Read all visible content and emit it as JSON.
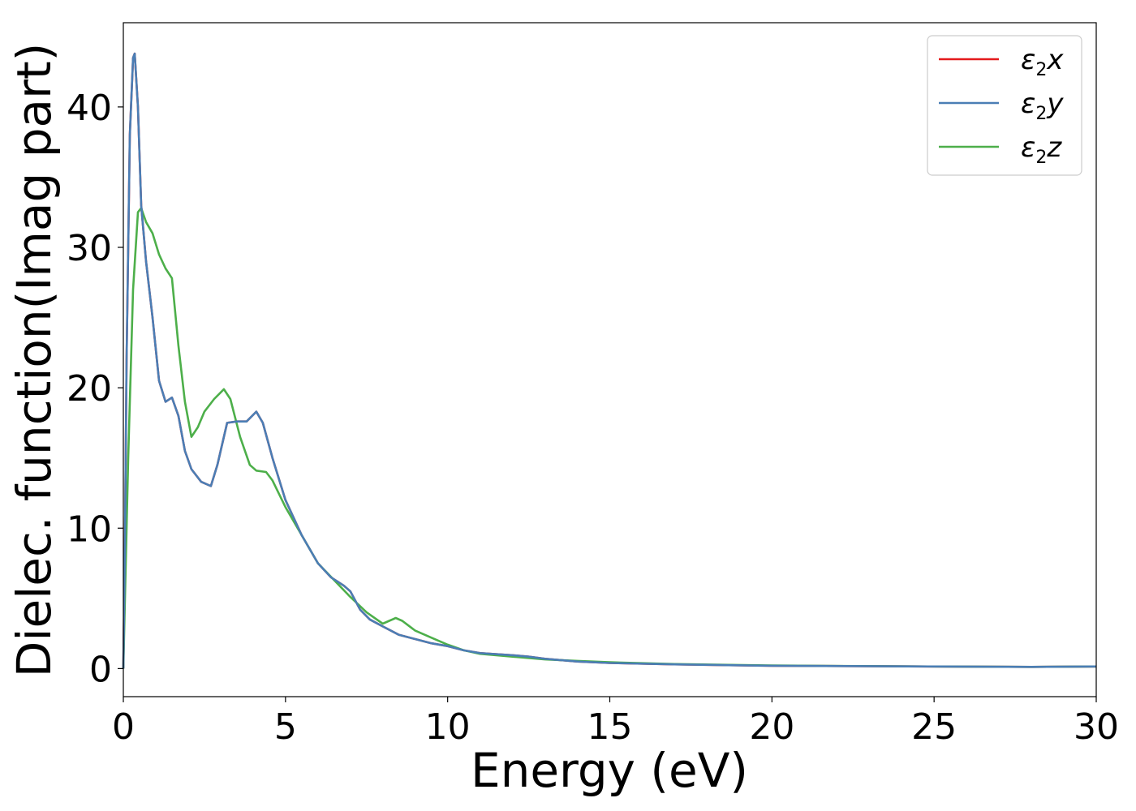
{
  "chart_data": {
    "type": "line",
    "xlabel": "Energy (eV)",
    "ylabel": "Dielec. function(Imag part)",
    "xlim": [
      0,
      30
    ],
    "ylim": [
      -2,
      46
    ],
    "x_ticks": [
      0,
      5,
      10,
      15,
      20,
      25,
      30
    ],
    "y_ticks": [
      0,
      10,
      20,
      30,
      40
    ],
    "grid": false,
    "legend_position": "top-right",
    "series": [
      {
        "name": "ε₂x",
        "legend_base": "ε",
        "legend_sub": "2",
        "legend_var": "x",
        "color": "#e41a1c",
        "points": [
          [
            0,
            0
          ],
          [
            0.05,
            9
          ],
          [
            0.1,
            22
          ],
          [
            0.2,
            38
          ],
          [
            0.3,
            43.5
          ],
          [
            0.35,
            43.8
          ],
          [
            0.45,
            40
          ],
          [
            0.55,
            33
          ],
          [
            0.7,
            29
          ],
          [
            0.9,
            25
          ],
          [
            1.1,
            20.5
          ],
          [
            1.3,
            19
          ],
          [
            1.5,
            19.3
          ],
          [
            1.7,
            18
          ],
          [
            1.9,
            15.5
          ],
          [
            2.1,
            14.2
          ],
          [
            2.4,
            13.3
          ],
          [
            2.7,
            13
          ],
          [
            2.9,
            14.5
          ],
          [
            3.2,
            17.5
          ],
          [
            3.5,
            17.6
          ],
          [
            3.8,
            17.6
          ],
          [
            4.1,
            18.3
          ],
          [
            4.3,
            17.5
          ],
          [
            4.6,
            15
          ],
          [
            5.0,
            12
          ],
          [
            5.5,
            9.5
          ],
          [
            6.0,
            7.5
          ],
          [
            6.4,
            6.5
          ],
          [
            6.8,
            5.9
          ],
          [
            7.0,
            5.5
          ],
          [
            7.3,
            4.2
          ],
          [
            7.6,
            3.5
          ],
          [
            8.0,
            3
          ],
          [
            8.5,
            2.4
          ],
          [
            9.0,
            2.1
          ],
          [
            9.5,
            1.8
          ],
          [
            10.0,
            1.6
          ],
          [
            10.5,
            1.3
          ],
          [
            11.0,
            1.1
          ],
          [
            12.0,
            0.95
          ],
          [
            12.5,
            0.85
          ],
          [
            13.0,
            0.7
          ],
          [
            14.0,
            0.5
          ],
          [
            15.0,
            0.4
          ],
          [
            17.0,
            0.3
          ],
          [
            20.0,
            0.2
          ],
          [
            25.0,
            0.15
          ],
          [
            28.0,
            0.12
          ],
          [
            30.0,
            0.15
          ]
        ]
      },
      {
        "name": "ε₂y",
        "legend_base": "ε",
        "legend_sub": "2",
        "legend_var": "y",
        "color": "#4a7eb5",
        "points": [
          [
            0,
            0
          ],
          [
            0.05,
            9
          ],
          [
            0.1,
            22
          ],
          [
            0.2,
            38
          ],
          [
            0.3,
            43.5
          ],
          [
            0.35,
            43.8
          ],
          [
            0.45,
            40
          ],
          [
            0.55,
            33
          ],
          [
            0.7,
            29
          ],
          [
            0.9,
            25
          ],
          [
            1.1,
            20.5
          ],
          [
            1.3,
            19
          ],
          [
            1.5,
            19.3
          ],
          [
            1.7,
            18
          ],
          [
            1.9,
            15.5
          ],
          [
            2.1,
            14.2
          ],
          [
            2.4,
            13.3
          ],
          [
            2.7,
            13
          ],
          [
            2.9,
            14.5
          ],
          [
            3.2,
            17.5
          ],
          [
            3.5,
            17.6
          ],
          [
            3.8,
            17.6
          ],
          [
            4.1,
            18.3
          ],
          [
            4.3,
            17.5
          ],
          [
            4.6,
            15
          ],
          [
            5.0,
            12
          ],
          [
            5.5,
            9.5
          ],
          [
            6.0,
            7.5
          ],
          [
            6.4,
            6.5
          ],
          [
            6.8,
            5.9
          ],
          [
            7.0,
            5.5
          ],
          [
            7.3,
            4.2
          ],
          [
            7.6,
            3.5
          ],
          [
            8.0,
            3
          ],
          [
            8.5,
            2.4
          ],
          [
            9.0,
            2.1
          ],
          [
            9.5,
            1.8
          ],
          [
            10.0,
            1.6
          ],
          [
            10.5,
            1.3
          ],
          [
            11.0,
            1.1
          ],
          [
            12.0,
            0.95
          ],
          [
            12.5,
            0.85
          ],
          [
            13.0,
            0.7
          ],
          [
            14.0,
            0.5
          ],
          [
            15.0,
            0.4
          ],
          [
            17.0,
            0.3
          ],
          [
            20.0,
            0.2
          ],
          [
            25.0,
            0.15
          ],
          [
            28.0,
            0.12
          ],
          [
            30.0,
            0.15
          ]
        ]
      },
      {
        "name": "ε₂z",
        "legend_base": "ε",
        "legend_sub": "2",
        "legend_var": "z",
        "color": "#4daf4a",
        "points": [
          [
            0,
            0
          ],
          [
            0.05,
            5
          ],
          [
            0.15,
            15
          ],
          [
            0.3,
            27
          ],
          [
            0.45,
            32.5
          ],
          [
            0.55,
            32.8
          ],
          [
            0.7,
            31.8
          ],
          [
            0.9,
            31
          ],
          [
            1.1,
            29.5
          ],
          [
            1.3,
            28.5
          ],
          [
            1.5,
            27.8
          ],
          [
            1.7,
            23
          ],
          [
            1.9,
            19
          ],
          [
            2.1,
            16.5
          ],
          [
            2.3,
            17.2
          ],
          [
            2.5,
            18.3
          ],
          [
            2.8,
            19.2
          ],
          [
            3.1,
            19.9
          ],
          [
            3.3,
            19.2
          ],
          [
            3.6,
            16.5
          ],
          [
            3.9,
            14.5
          ],
          [
            4.1,
            14.1
          ],
          [
            4.4,
            14
          ],
          [
            4.6,
            13.4
          ],
          [
            5.0,
            11.5
          ],
          [
            5.5,
            9.5
          ],
          [
            6.0,
            7.5
          ],
          [
            6.5,
            6.3
          ],
          [
            7.0,
            5.1
          ],
          [
            7.5,
            4
          ],
          [
            8.0,
            3.2
          ],
          [
            8.2,
            3.4
          ],
          [
            8.4,
            3.6
          ],
          [
            8.6,
            3.4
          ],
          [
            9.0,
            2.7
          ],
          [
            9.5,
            2.2
          ],
          [
            10.0,
            1.7
          ],
          [
            10.5,
            1.3
          ],
          [
            11.0,
            1.05
          ],
          [
            12.0,
            0.85
          ],
          [
            13.0,
            0.65
          ],
          [
            14.0,
            0.55
          ],
          [
            15.0,
            0.45
          ],
          [
            17.0,
            0.32
          ],
          [
            20.0,
            0.22
          ],
          [
            25.0,
            0.15
          ],
          [
            28.0,
            0.12
          ],
          [
            30.0,
            0.15
          ]
        ]
      }
    ]
  }
}
